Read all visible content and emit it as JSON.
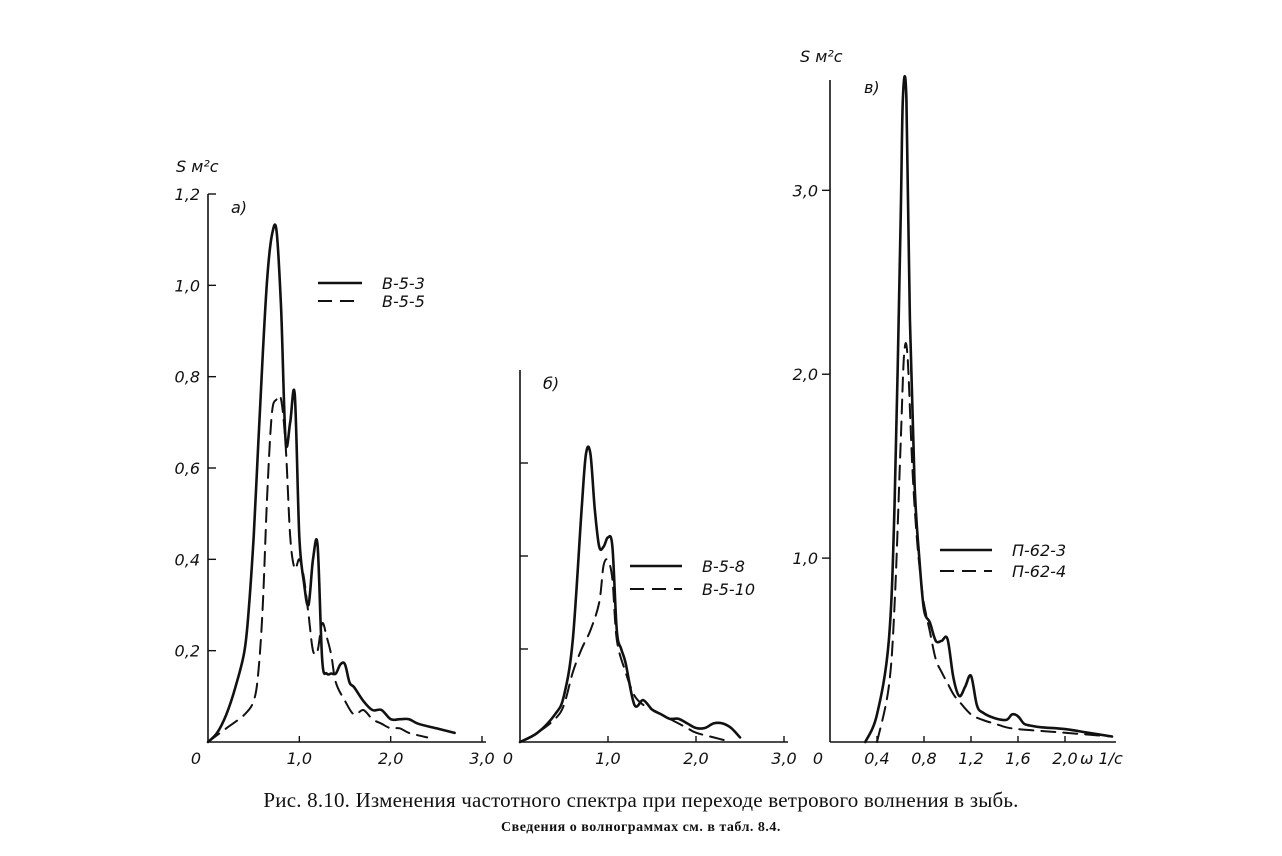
{
  "caption": {
    "main": "Рис. 8.10. Изменения частотного спектра при переходе ветрового волнения в зыбь.",
    "sub": "Сведения о волнограммах см. в табл. 8.4."
  },
  "origin_label": "0",
  "chart_data": [
    {
      "panel": "а)",
      "type": "line",
      "ylabel": "S м²с",
      "xlim": [
        0,
        3.0
      ],
      "ylim": [
        0,
        1.2
      ],
      "x_ticks": [
        "1,0",
        "2,0",
        "3,0"
      ],
      "y_ticks": [
        "0,2",
        "0,4",
        "0,6",
        "0,8",
        "1,0",
        "1,2"
      ],
      "legend_position": "top-right",
      "series": [
        {
          "name": "В-5-3",
          "style": "solid",
          "x": [
            0.0,
            0.1,
            0.2,
            0.3,
            0.4,
            0.45,
            0.5,
            0.55,
            0.6,
            0.65,
            0.7,
            0.75,
            0.8,
            0.85,
            0.9,
            0.95,
            1.0,
            1.05,
            1.1,
            1.15,
            1.2,
            1.25,
            1.3,
            1.35,
            1.4,
            1.45,
            1.5,
            1.55,
            1.6,
            1.7,
            1.8,
            1.9,
            2.0,
            2.1,
            2.2,
            2.3,
            2.5,
            2.7
          ],
          "y": [
            0.0,
            0.02,
            0.06,
            0.12,
            0.2,
            0.3,
            0.45,
            0.65,
            0.85,
            1.02,
            1.11,
            1.12,
            0.95,
            0.66,
            0.7,
            0.76,
            0.45,
            0.35,
            0.3,
            0.4,
            0.43,
            0.18,
            0.15,
            0.15,
            0.15,
            0.17,
            0.17,
            0.13,
            0.12,
            0.09,
            0.07,
            0.07,
            0.05,
            0.05,
            0.05,
            0.04,
            0.03,
            0.02
          ]
        },
        {
          "name": "В-5-5",
          "style": "dashed",
          "x": [
            0.0,
            0.2,
            0.4,
            0.5,
            0.55,
            0.6,
            0.65,
            0.7,
            0.75,
            0.8,
            0.85,
            0.9,
            0.95,
            1.0,
            1.05,
            1.1,
            1.15,
            1.2,
            1.25,
            1.3,
            1.35,
            1.4,
            1.5,
            1.6,
            1.7,
            1.8,
            1.9,
            2.0,
            2.1,
            2.2,
            2.4
          ],
          "y": [
            0.0,
            0.03,
            0.06,
            0.09,
            0.15,
            0.3,
            0.55,
            0.72,
            0.75,
            0.75,
            0.65,
            0.45,
            0.38,
            0.4,
            0.36,
            0.28,
            0.2,
            0.2,
            0.26,
            0.23,
            0.19,
            0.13,
            0.09,
            0.06,
            0.07,
            0.05,
            0.04,
            0.03,
            0.03,
            0.02,
            0.01
          ]
        }
      ]
    },
    {
      "panel": "б)",
      "type": "line",
      "ylabel": "",
      "xlim": [
        0,
        3.0
      ],
      "ylim": [
        0,
        0.8
      ],
      "x_ticks": [
        "1,0",
        "2,0",
        "3,0"
      ],
      "y_ticks": [],
      "legend_position": "right",
      "series": [
        {
          "name": "В-5-8",
          "style": "solid",
          "x": [
            0.0,
            0.2,
            0.4,
            0.5,
            0.6,
            0.7,
            0.75,
            0.8,
            0.85,
            0.9,
            0.95,
            1.0,
            1.05,
            1.1,
            1.15,
            1.2,
            1.3,
            1.4,
            1.5,
            1.6,
            1.7,
            1.8,
            1.9,
            2.0,
            2.1,
            2.2,
            2.3,
            2.4,
            2.5
          ],
          "y": [
            0.0,
            0.02,
            0.06,
            0.1,
            0.22,
            0.5,
            0.62,
            0.62,
            0.5,
            0.42,
            0.42,
            0.44,
            0.42,
            0.24,
            0.2,
            0.17,
            0.08,
            0.09,
            0.07,
            0.06,
            0.05,
            0.05,
            0.04,
            0.03,
            0.03,
            0.04,
            0.04,
            0.03,
            0.01
          ]
        },
        {
          "name": "В-5-10",
          "style": "dashed",
          "x": [
            0.0,
            0.2,
            0.4,
            0.5,
            0.6,
            0.7,
            0.8,
            0.9,
            0.95,
            1.0,
            1.05,
            1.1,
            1.2,
            1.3,
            1.4,
            1.5,
            1.6,
            1.7,
            1.8,
            1.9,
            2.0,
            2.2,
            2.4
          ],
          "y": [
            0.0,
            0.02,
            0.05,
            0.08,
            0.15,
            0.2,
            0.24,
            0.3,
            0.38,
            0.39,
            0.35,
            0.22,
            0.15,
            0.1,
            0.08,
            0.07,
            0.06,
            0.05,
            0.04,
            0.03,
            0.02,
            0.01,
            0.0
          ]
        }
      ]
    },
    {
      "panel": "в)",
      "type": "line",
      "ylabel": "S м²с",
      "xlabel": "ω 1/с",
      "xlim": [
        0,
        2.4
      ],
      "ylim": [
        0,
        3.6
      ],
      "x_ticks": [
        "0,4",
        "0,8",
        "1,2",
        "1,6",
        "2,0"
      ],
      "y_ticks": [
        "1,0",
        "2,0",
        "3,0"
      ],
      "legend_position": "right",
      "series": [
        {
          "name": "П-62-3",
          "style": "solid",
          "x": [
            0.3,
            0.4,
            0.5,
            0.55,
            0.6,
            0.62,
            0.65,
            0.68,
            0.72,
            0.76,
            0.8,
            0.85,
            0.9,
            0.95,
            1.0,
            1.05,
            1.1,
            1.15,
            1.2,
            1.25,
            1.3,
            1.4,
            1.5,
            1.55,
            1.6,
            1.65,
            1.7,
            1.8,
            2.0,
            2.2,
            2.4
          ],
          "y": [
            0.0,
            0.15,
            0.55,
            1.3,
            2.8,
            3.5,
            3.5,
            2.3,
            1.4,
            1.0,
            0.72,
            0.65,
            0.55,
            0.55,
            0.56,
            0.35,
            0.25,
            0.3,
            0.36,
            0.2,
            0.16,
            0.13,
            0.12,
            0.15,
            0.14,
            0.1,
            0.09,
            0.08,
            0.07,
            0.05,
            0.03
          ]
        },
        {
          "name": "П-62-4",
          "style": "dashed",
          "x": [
            0.4,
            0.5,
            0.55,
            0.6,
            0.63,
            0.66,
            0.7,
            0.74,
            0.78,
            0.8,
            0.85,
            0.9,
            0.95,
            1.0,
            1.05,
            1.1,
            1.2,
            1.3,
            1.4,
            1.5,
            1.6,
            1.8,
            2.0,
            2.2,
            2.4
          ],
          "y": [
            0.0,
            0.3,
            0.75,
            1.6,
            2.1,
            2.1,
            1.5,
            1.1,
            0.85,
            0.75,
            0.6,
            0.45,
            0.38,
            0.32,
            0.26,
            0.22,
            0.15,
            0.12,
            0.1,
            0.08,
            0.07,
            0.06,
            0.05,
            0.04,
            0.03
          ]
        }
      ]
    }
  ]
}
